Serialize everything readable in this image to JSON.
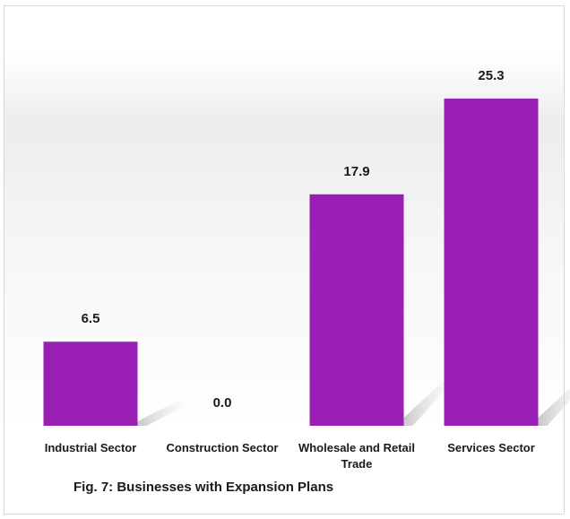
{
  "caption": "Fig. 7: Businesses with Expansion Plans",
  "chart_data": {
    "type": "bar",
    "categories": [
      "Industrial Sector",
      "Construction Sector",
      "Wholesale and Retail Trade",
      "Services Sector"
    ],
    "values": [
      6.5,
      0.0,
      17.9,
      25.3
    ],
    "value_labels": [
      "6.5",
      "0.0",
      "17.9",
      "25.3"
    ],
    "title": "",
    "xlabel": "",
    "ylabel": "",
    "ylim": [
      0,
      25.3
    ],
    "grid": false,
    "legend": "none",
    "bar_color": "#9a1fb4",
    "background_gradient": [
      "#e6e6e6",
      "#ffffff"
    ]
  }
}
